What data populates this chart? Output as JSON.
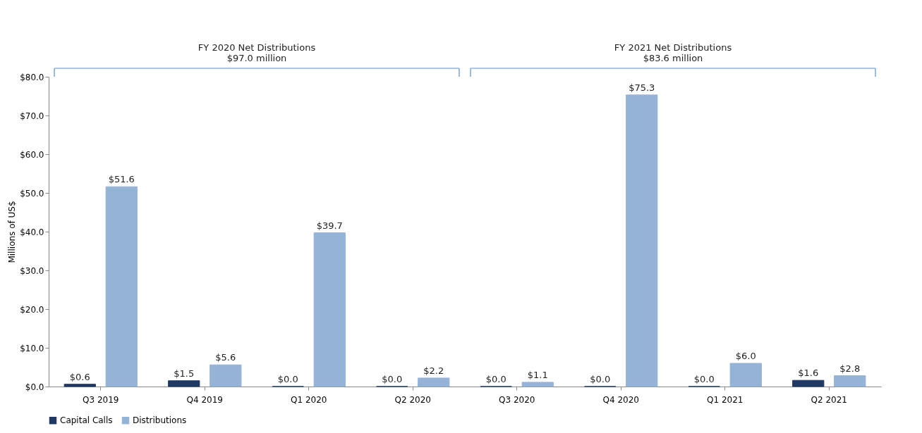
{
  "chart_data": {
    "type": "bar",
    "ylabel": "Millions of US$",
    "categories": [
      "Q3 2019",
      "Q4 2019",
      "Q1 2020",
      "Q2 2020",
      "Q3 2020",
      "Q4 2020",
      "Q1 2021",
      "Q2 2021"
    ],
    "series": [
      {
        "name": "Capital Calls",
        "color": "#1f3864",
        "values": [
          0.6,
          1.5,
          0.0,
          0.0,
          0.0,
          0.0,
          0.0,
          1.6
        ],
        "value_labels": [
          "$0.6",
          "$1.5",
          "$0.0",
          "$0.0",
          "$0.0",
          "$0.0",
          "$0.0",
          "$1.6"
        ]
      },
      {
        "name": "Distributions",
        "color": "#95b3d7",
        "values": [
          51.6,
          5.6,
          39.7,
          2.2,
          1.1,
          75.3,
          6.0,
          2.8
        ],
        "value_labels": [
          "$51.6",
          "$5.6",
          "$39.7",
          "$2.2",
          "$1.1",
          "$75.3",
          "$6.0",
          "$2.8"
        ]
      }
    ],
    "ylim": [
      0,
      80
    ],
    "yticks": [
      {
        "value": 0,
        "label": "$0.0"
      },
      {
        "value": 10,
        "label": "$10.0"
      },
      {
        "value": 20,
        "label": "$20.0"
      },
      {
        "value": 30,
        "label": "$30.0"
      },
      {
        "value": 40,
        "label": "$40.0"
      },
      {
        "value": 50,
        "label": "$50.0"
      },
      {
        "value": 60,
        "label": "$60.0"
      },
      {
        "value": 70,
        "label": "$70.0"
      },
      {
        "value": 80,
        "label": "$80.0"
      }
    ],
    "annotations": [
      "FY 2020 Net Distributions\n$97.0 million",
      "FY 2021 Net Distributions\n$83.6 million"
    ],
    "grid": false,
    "legend": "bottom"
  }
}
